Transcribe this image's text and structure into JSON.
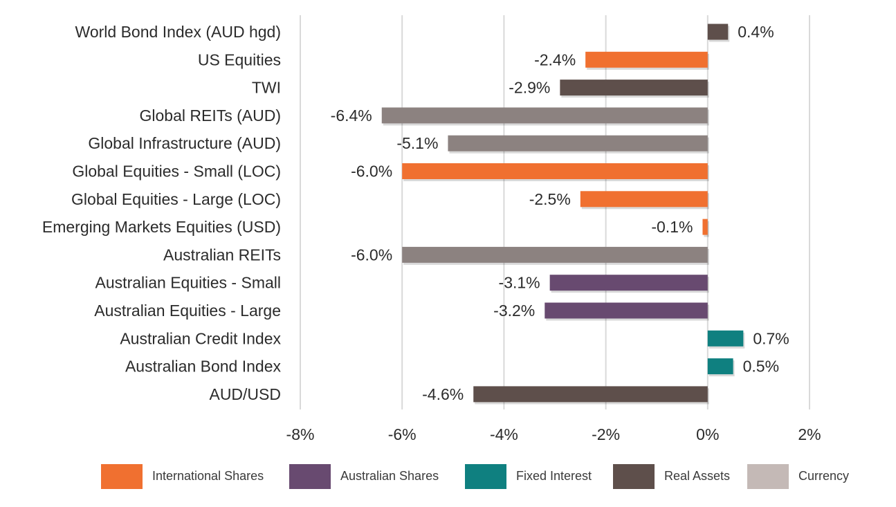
{
  "chart_data": {
    "type": "bar",
    "orientation": "horizontal",
    "categories": [
      "World Bond Index (AUD hgd)",
      "US Equities",
      "TWI",
      "Global REITs (AUD)",
      "Global Infrastructure (AUD)",
      "Global Equities - Small (LOC)",
      "Global Equities - Large (LOC)",
      "Emerging Markets Equities (USD)",
      "Australian REITs",
      "Australian Equities - Small",
      "Australian Equities - Large",
      "Australian Credit Index",
      "Australian Bond Index",
      "AUD/USD"
    ],
    "values": [
      0.4,
      -2.4,
      -2.9,
      -6.4,
      -5.1,
      -6.0,
      -2.5,
      -0.1,
      -6.0,
      -3.1,
      -3.2,
      0.7,
      0.5,
      -4.6
    ],
    "value_labels": [
      "0.4%",
      "-2.4%",
      "-2.9%",
      "-6.4%",
      "-5.1%",
      "-6.0%",
      "-2.5%",
      "-0.1%",
      "-6.0%",
      "-3.1%",
      "-3.2%",
      "0.7%",
      "0.5%",
      "-4.6%"
    ],
    "bar_groups": [
      "Real Assets",
      "International Shares",
      "Real Assets",
      "Currency",
      "Currency",
      "International Shares",
      "International Shares",
      "International Shares",
      "Currency",
      "Australian Shares",
      "Australian Shares",
      "Fixed Interest",
      "Fixed Interest",
      "Real Assets"
    ],
    "xlim": [
      -8,
      2
    ],
    "x_ticks": [
      -8,
      -6,
      -4,
      -2,
      0,
      2
    ],
    "x_tick_labels": [
      "-8%",
      "-6%",
      "-4%",
      "-2%",
      "0%",
      "2%"
    ],
    "grid": "vertical",
    "legend_position": "bottom",
    "legend": [
      {
        "name": "International Shares",
        "color": "#f07030"
      },
      {
        "name": "Australian Shares",
        "color": "#684a70"
      },
      {
        "name": "Fixed Interest",
        "color": "#0f8080"
      },
      {
        "name": "Real Assets",
        "color": "#5e4f4b"
      },
      {
        "name": "Currency",
        "color": "#c4b9b6"
      }
    ],
    "bar_colors": {
      "International Shares": "#f07030",
      "Australian Shares": "#684a70",
      "Fixed Interest": "#0f8080",
      "Real Assets": "#5e4f4b",
      "Currency": "#8c8280"
    }
  }
}
